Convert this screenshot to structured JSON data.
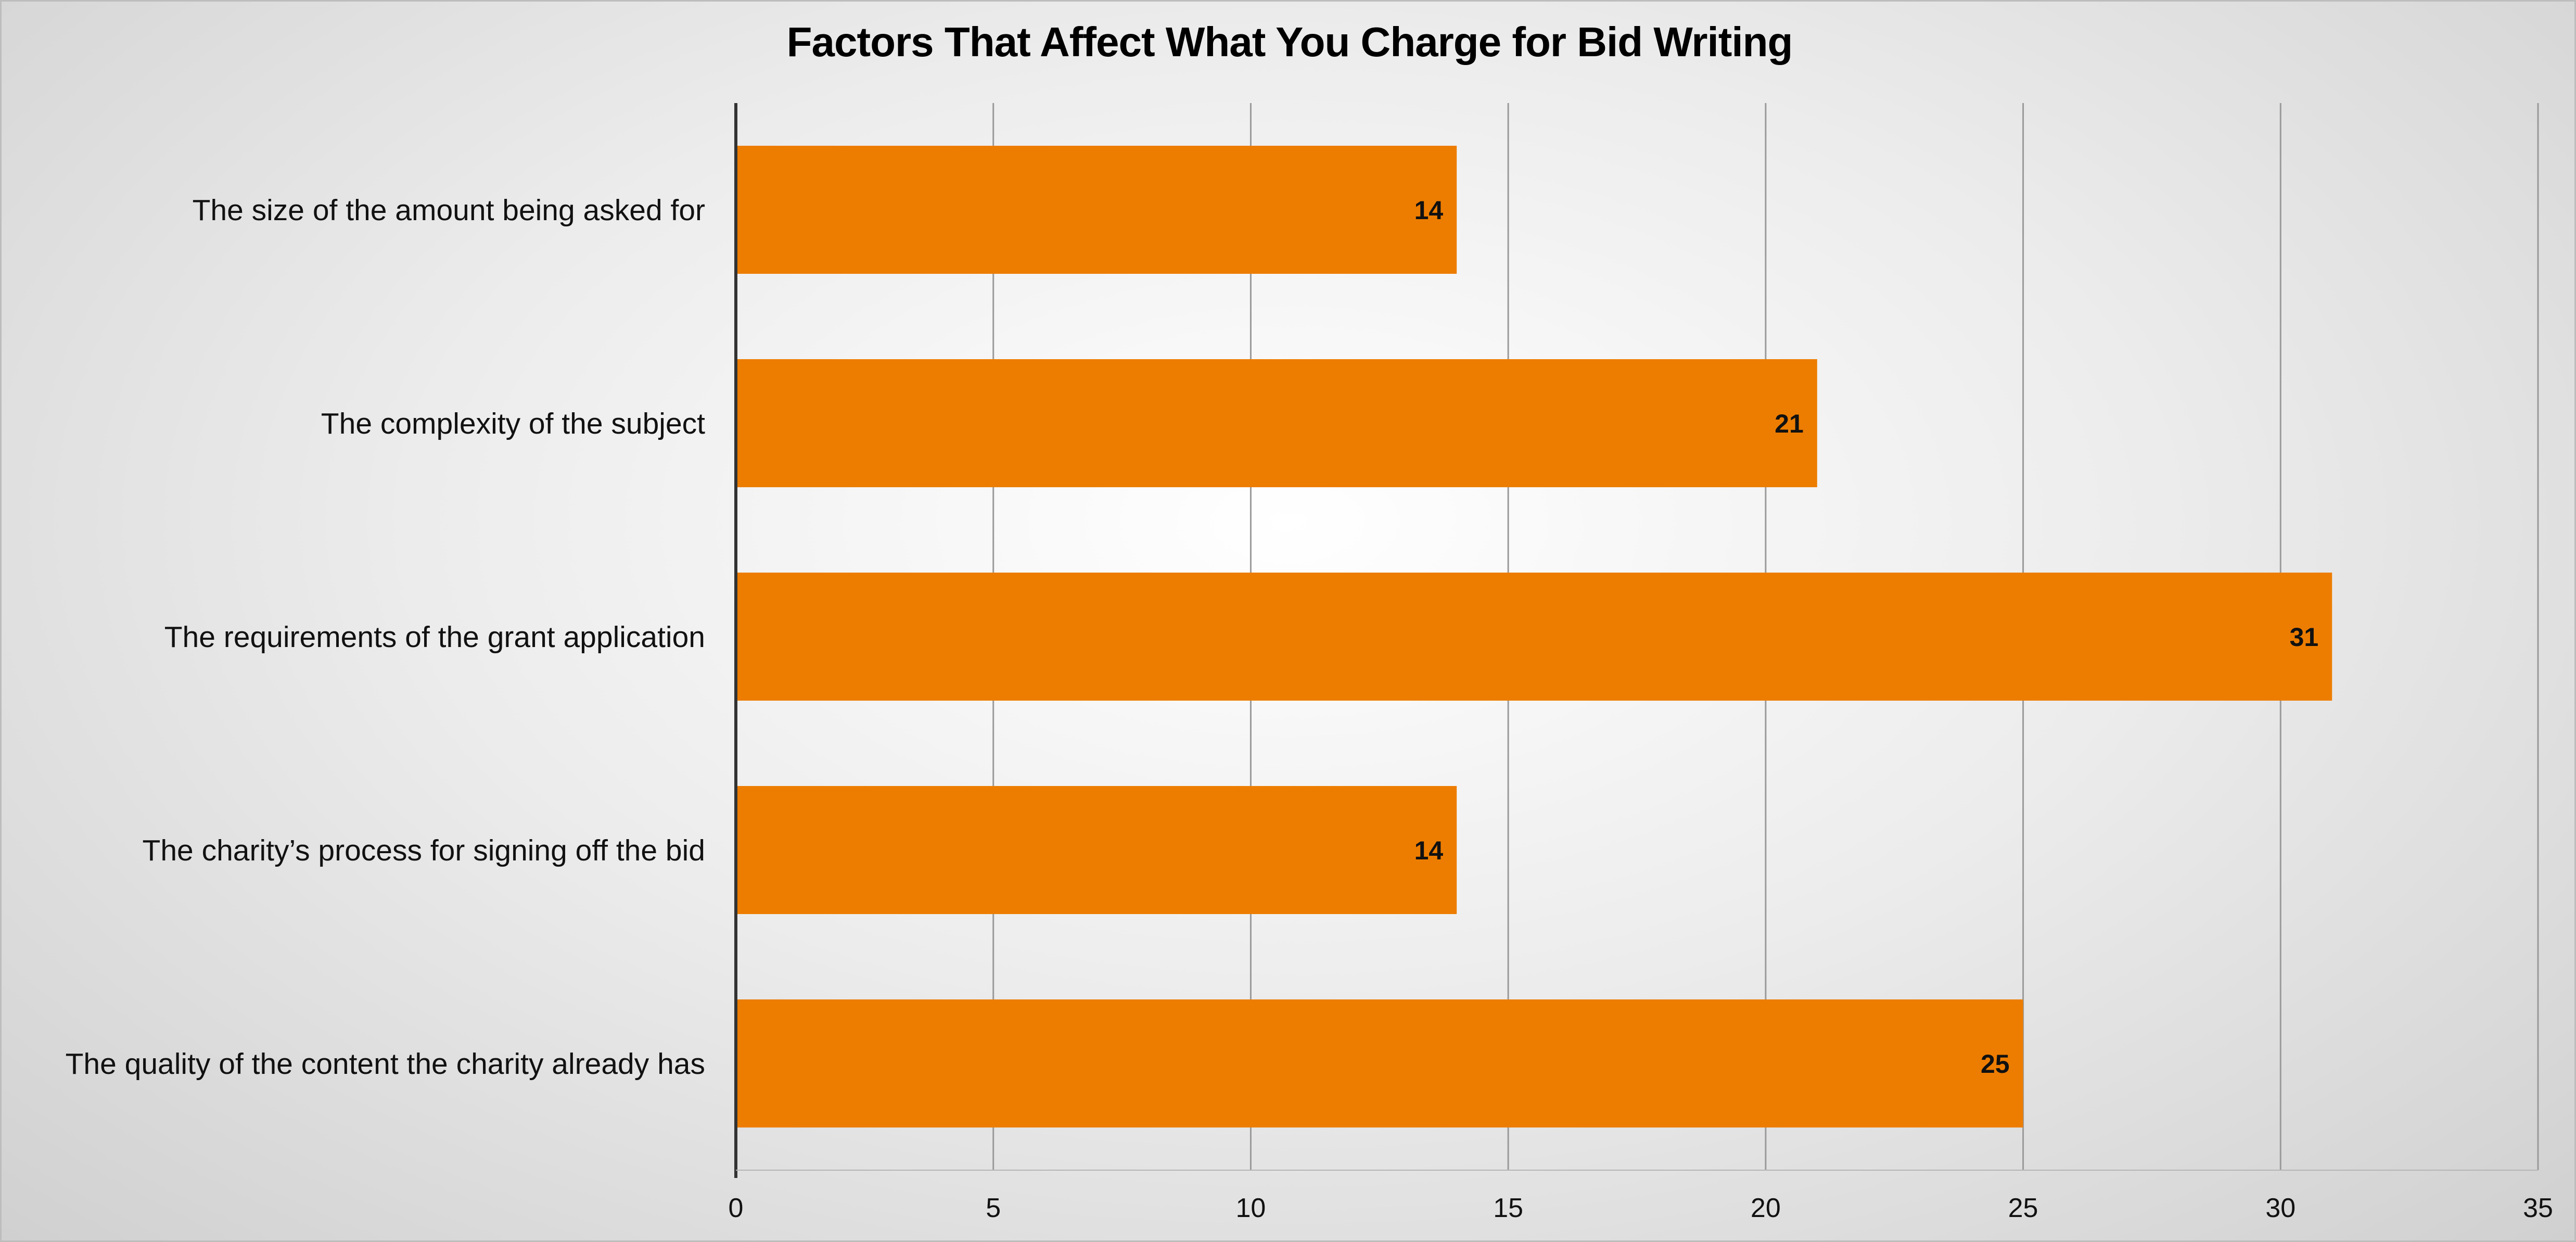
{
  "chart_data": {
    "type": "bar",
    "orientation": "horizontal",
    "title": "Factors That Affect What You Charge for Bid Writing",
    "xlabel": "",
    "ylabel": "",
    "categories": [
      "The size of the amount being asked for",
      "The complexity of the subject",
      "The requirements of the grant application",
      "The charity’s process for signing off the bid",
      "The quality of the content the charity already has"
    ],
    "values": [
      14,
      21,
      31,
      14,
      25
    ],
    "xlim": [
      0,
      35
    ],
    "xticks": [
      "0",
      "5",
      "10",
      "15",
      "20",
      "25",
      "30",
      "35"
    ],
    "grid": "vertical",
    "legend": "none",
    "bar_color": "#ED7D00",
    "data_labels": true
  }
}
